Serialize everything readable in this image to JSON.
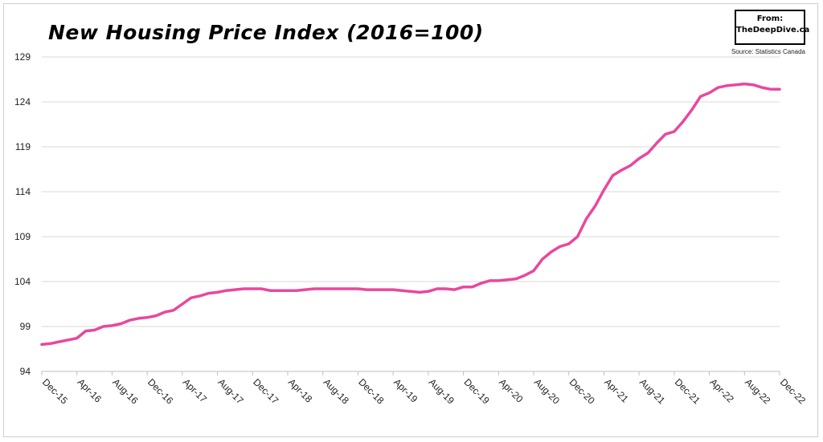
{
  "header": {
    "title": "New Housing Price Index (2016=100)",
    "from_label": "From:",
    "from_site": "TheDeepDive.ca",
    "source": "Source: Statistics Canada"
  },
  "colors": {
    "line": "#e8489c",
    "grid": "#d9d9d9",
    "axis": "#bfbfbf"
  },
  "chart_data": {
    "type": "line",
    "title": "New Housing Price Index (2016=100)",
    "xlabel": "",
    "ylabel": "",
    "ylim": [
      94,
      129
    ],
    "yticks": [
      94,
      99,
      104,
      109,
      114,
      119,
      124,
      129
    ],
    "grid": true,
    "x_tick_labels": [
      "Dec-15",
      "Apr-16",
      "Aug-16",
      "Dec-16",
      "Apr-17",
      "Aug-17",
      "Dec-17",
      "Apr-18",
      "Aug-18",
      "Dec-18",
      "Apr-19",
      "Aug-19",
      "Dec-19",
      "Apr-20",
      "Aug-20",
      "Dec-20",
      "Apr-21",
      "Aug-21",
      "Dec-21",
      "Apr-22",
      "Aug-22",
      "Dec-22"
    ],
    "series": [
      {
        "x": [
          "Dec-15",
          "Jan-16",
          "Feb-16",
          "Mar-16",
          "Apr-16",
          "May-16",
          "Jun-16",
          "Jul-16",
          "Aug-16",
          "Sep-16",
          "Oct-16",
          "Nov-16",
          "Dec-16",
          "Jan-17",
          "Feb-17",
          "Mar-17",
          "Apr-17",
          "May-17",
          "Jun-17",
          "Jul-17",
          "Aug-17",
          "Sep-17",
          "Oct-17",
          "Nov-17",
          "Dec-17",
          "Jan-18",
          "Feb-18",
          "Mar-18",
          "Apr-18",
          "May-18",
          "Jun-18",
          "Jul-18",
          "Aug-18",
          "Sep-18",
          "Oct-18",
          "Nov-18",
          "Dec-18",
          "Jan-19",
          "Feb-19",
          "Mar-19",
          "Apr-19",
          "May-19",
          "Jun-19",
          "Jul-19",
          "Aug-19",
          "Sep-19",
          "Oct-19",
          "Nov-19",
          "Dec-19",
          "Jan-20",
          "Feb-20",
          "Mar-20",
          "Apr-20",
          "May-20",
          "Jun-20",
          "Jul-20",
          "Aug-20",
          "Sep-20",
          "Oct-20",
          "Nov-20",
          "Dec-20",
          "Jan-21",
          "Feb-21",
          "Mar-21",
          "Apr-21",
          "May-21",
          "Jun-21",
          "Jul-21",
          "Aug-21",
          "Sep-21",
          "Oct-21",
          "Nov-21",
          "Dec-21",
          "Jan-22",
          "Feb-22",
          "Mar-22",
          "Apr-22",
          "May-22",
          "Jun-22",
          "Jul-22",
          "Aug-22",
          "Sep-22",
          "Oct-22",
          "Nov-22",
          "Dec-22"
        ],
        "values": [
          97.0,
          97.1,
          97.3,
          97.5,
          97.7,
          98.5,
          98.6,
          99.0,
          99.1,
          99.3,
          99.7,
          99.9,
          100.0,
          100.2,
          100.6,
          100.8,
          101.5,
          102.2,
          102.4,
          102.7,
          102.8,
          103.0,
          103.1,
          103.2,
          103.2,
          103.2,
          103.0,
          103.0,
          103.0,
          103.0,
          103.1,
          103.2,
          103.2,
          103.2,
          103.2,
          103.2,
          103.2,
          103.1,
          103.1,
          103.1,
          103.1,
          103.0,
          102.9,
          102.8,
          102.9,
          103.2,
          103.2,
          103.1,
          103.4,
          103.4,
          103.8,
          104.1,
          104.1,
          104.2,
          104.3,
          104.7,
          105.2,
          106.5,
          107.3,
          107.9,
          108.2,
          109.0,
          111.0,
          112.4,
          114.2,
          115.8,
          116.4,
          116.9,
          117.7,
          118.3,
          119.4,
          120.4,
          120.7,
          121.8,
          123.1,
          124.6,
          125.0,
          125.6,
          125.8,
          125.9,
          126.0,
          125.9,
          125.6,
          125.4,
          125.4
        ]
      }
    ]
  }
}
